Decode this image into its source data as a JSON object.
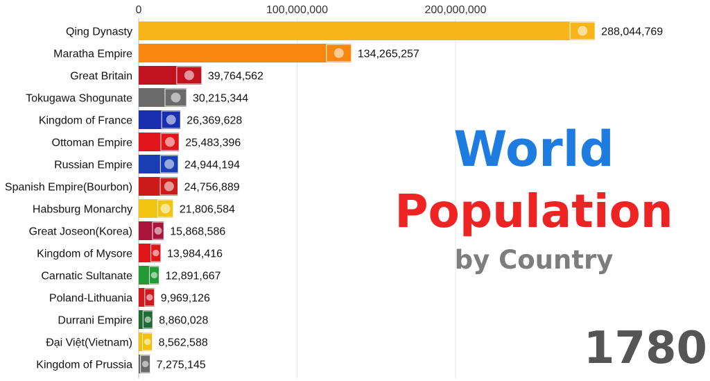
{
  "chart_data": {
    "type": "bar",
    "orientation": "horizontal",
    "categories": [
      "Qing Dynasty",
      "Maratha Empire",
      "Great Britain",
      "Tokugawa Shogunate",
      "Kingdom of France",
      "Ottoman Empire",
      "Russian Empire",
      "Spanish Empire(Bourbon)",
      "Habsburg Monarchy",
      "Great Joseon(Korea)",
      "Kingdom of Mysore",
      "Carnatic Sultanate",
      "Poland-Lithuania",
      "Durrani Empire",
      "Đại Việt(Vietnam)",
      "Kingdom of Prussia"
    ],
    "values": [
      288044769,
      134265257,
      39764562,
      30215344,
      26369628,
      25483396,
      24944194,
      24756889,
      21806584,
      15868586,
      13984416,
      12891667,
      9969126,
      8860028,
      8562588,
      7275145
    ],
    "value_labels": [
      "288,044,769",
      "134,265,257",
      "39,764,562",
      "30,215,344",
      "26,369,628",
      "25,483,396",
      "24,944,194",
      "24,756,889",
      "21,806,584",
      "15,868,586",
      "13,984,416",
      "12,891,667",
      "9,969,126",
      "8,860,028",
      "8,562,588",
      "7,275,145"
    ],
    "colors": [
      "#f7b519",
      "#f7870f",
      "#c1121f",
      "#6b6b6b",
      "#1a2fb0",
      "#e0161a",
      "#1a3fb5",
      "#cc1a1a",
      "#f2c510",
      "#a8143a",
      "#e0161a",
      "#229b35",
      "#d11a1f",
      "#1f6b35",
      "#f0c20c",
      "#6b6b6b"
    ],
    "flag_icons": [
      "dragon-flag-icon",
      "saffron-flag-icon",
      "union-jack-flag-icon",
      "tokugawa-crest-icon",
      "bourbon-fleur-flag-icon",
      "ottoman-crescent-flag-icon",
      "russian-tricolor-flag-icon",
      "spanish-bourbon-flag-icon",
      "habsburg-flag-icon",
      "joseon-flag-icon",
      "mysore-flag-icon",
      "carnatic-flag-icon",
      "polish-lithuanian-flag-icon",
      "durrani-flag-icon",
      "dai-viet-flag-icon",
      "prussian-eagle-flag-icon"
    ],
    "xaxis_ticks": [
      0,
      100000000,
      200000000
    ],
    "xaxis_tick_labels": [
      "0",
      "100,000,000",
      "200,000,000"
    ],
    "xlim": [
      0,
      288044769
    ],
    "grid": true,
    "legend": "none"
  },
  "title": {
    "line1": "World",
    "line2": "Population",
    "line3": "by Country"
  },
  "year": "1780"
}
